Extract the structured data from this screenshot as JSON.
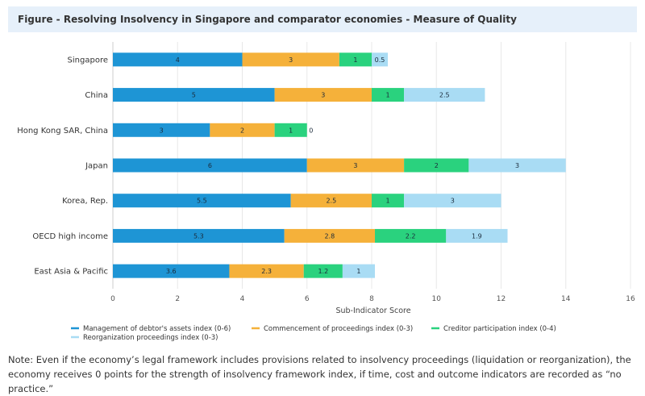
{
  "header": {
    "title": "Figure - Resolving Insolvency in Singapore and comparator economies - Measure of Quality"
  },
  "chart_data": {
    "type": "bar",
    "orientation": "horizontal",
    "stacked": true,
    "title": "Figure - Resolving Insolvency in Singapore and comparator economies - Measure of Quality",
    "xlabel": "Sub-Indicator Score",
    "ylabel": "",
    "xlim": [
      0,
      16
    ],
    "xticks": [
      0,
      2,
      4,
      6,
      8,
      10,
      12,
      14,
      16
    ],
    "grid": true,
    "legend_position": "bottom",
    "categories": [
      "Singapore",
      "China",
      "Hong Kong SAR, China",
      "Japan",
      "Korea, Rep.",
      "OECD high income",
      "East Asia & Pacific"
    ],
    "series": [
      {
        "name": "Management of debtor's assets index (0-6)",
        "color": "#1e95d5",
        "values": [
          4,
          5,
          3,
          6,
          5.5,
          5.3,
          3.6
        ]
      },
      {
        "name": "Commencement of proceedings index (0-3)",
        "color": "#f5b13a",
        "values": [
          3,
          3,
          2,
          3,
          2.5,
          2.8,
          2.3
        ]
      },
      {
        "name": "Creditor participation index (0-4)",
        "color": "#2ad27e",
        "values": [
          1,
          1,
          1,
          2,
          1,
          2.2,
          1.2
        ]
      },
      {
        "name": "Reorganization proceedings index (0-3)",
        "color": "#a9dcf4",
        "values": [
          0.5,
          2.5,
          0,
          3,
          3,
          1.9,
          1
        ]
      }
    ]
  },
  "note": "Note: Even if the economy’s legal framework includes provisions related to insolvency proceedings (liquidation or reorganization), the economy receives 0 points for the strength of insolvency framework index, if time, cost and outcome indicators are recorded as “no practice.”"
}
